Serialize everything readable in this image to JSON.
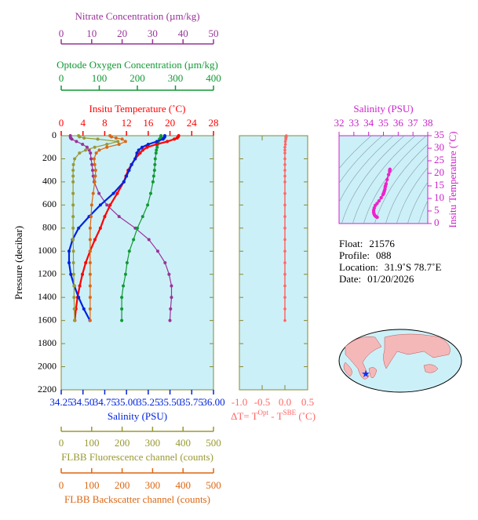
{
  "chart_data": [
    {
      "type": "profile",
      "ylabel": "Pressure (decibar)",
      "y": [
        0,
        10,
        20,
        30,
        50,
        75,
        100,
        125,
        150,
        200,
        250,
        300,
        350,
        400,
        500,
        600,
        700,
        800,
        900,
        1000,
        1100,
        1200,
        1300,
        1400,
        1500,
        1600
      ],
      "ylim": [
        0,
        2200
      ],
      "yticks": [
        0,
        200,
        400,
        600,
        800,
        1000,
        1200,
        1400,
        1600,
        1800,
        2000,
        2200
      ],
      "series": [
        {
          "name": "Nitrate Concentration (µm/kg)",
          "color": "#993399",
          "xlim": [
            0,
            50
          ],
          "xticks": [
            0,
            10,
            20,
            30,
            40,
            50
          ],
          "values": [
            3.0,
            3.0,
            3.1,
            3.5,
            5,
            7,
            8.5,
            9.2,
            9.6,
            9.8,
            10.1,
            10.3,
            10.5,
            10.8,
            12.4,
            15,
            19,
            24.3,
            28.8,
            31.7,
            34.1,
            35.4,
            36.2,
            36.2,
            35.9,
            35.7
          ]
        },
        {
          "name": "Optode Oxygen Concentration (µm/kg)",
          "color": "#119933",
          "xlim": [
            0,
            400
          ],
          "xticks": [
            0,
            100,
            200,
            300,
            400
          ],
          "values": [
            262,
            262,
            261,
            258,
            255,
            253,
            252,
            250,
            249,
            247,
            246,
            245,
            243,
            241,
            235,
            227,
            214,
            200,
            190,
            179,
            173,
            169,
            163,
            159,
            159,
            159
          ]
        },
        {
          "name": "Insitu Temperature (˚C)",
          "color": "#ff0000",
          "xlim": [
            0,
            28
          ],
          "xticks": [
            0,
            4,
            8,
            12,
            16,
            20,
            24,
            28
          ],
          "values": [
            21.6,
            21.5,
            21.3,
            20.8,
            19.5,
            17.5,
            15.8,
            15.0,
            14.5,
            13.6,
            12.9,
            12.3,
            11.9,
            11.5,
            10.3,
            9.0,
            8.0,
            7.2,
            6.2,
            5.3,
            4.5,
            3.9,
            3.4,
            3.0,
            2.7,
            2.5
          ]
        },
        {
          "name": "Salinity (PSU)",
          "color": "#0022dd",
          "xlim": [
            34.25,
            36.0
          ],
          "xticks": [
            {
              "value": 34.25,
              "label": "34.25"
            },
            {
              "value": 34.5,
              "label": "34.50"
            },
            {
              "value": 34.75,
              "label": "34.75"
            },
            {
              "value": 35,
              "label": "35.00"
            },
            {
              "value": 35.25,
              "label": "35.25"
            },
            {
              "value": 35.5,
              "label": "35.50"
            },
            {
              "value": 35.75,
              "label": "35.75"
            },
            {
              "value": 36,
              "label": "36.00"
            }
          ],
          "values": [
            35.44,
            35.44,
            35.43,
            35.42,
            35.35,
            35.25,
            35.18,
            35.14,
            35.12,
            35.1,
            35.06,
            35.03,
            35.0,
            34.97,
            34.85,
            34.7,
            34.57,
            34.45,
            34.38,
            34.34,
            34.34,
            34.36,
            34.4,
            34.45,
            34.51,
            34.58
          ]
        },
        {
          "name": "FLBB Fluorescence channel (counts)",
          "color": "#999933",
          "xlim": [
            0,
            500
          ],
          "xticks": [
            0,
            100,
            200,
            300,
            400,
            500
          ],
          "values": [
            57,
            60,
            75,
            120,
            186,
            150,
            110,
            80,
            60,
            44,
            40,
            39,
            39,
            39,
            39,
            39,
            39,
            39,
            39,
            40,
            40,
            41,
            42,
            42,
            43,
            44
          ]
        },
        {
          "name": "FLBB Backscatter channel (counts)",
          "color": "#dd6611",
          "xlim": [
            0,
            500
          ],
          "xticks": [
            0,
            100,
            200,
            300,
            400,
            500
          ],
          "values": [
            160,
            165,
            180,
            200,
            211,
            190,
            150,
            125,
            115,
            108,
            110,
            113,
            112,
            110,
            105,
            100,
            98,
            95,
            95,
            95,
            95,
            95,
            95,
            95,
            95,
            95
          ]
        }
      ]
    },
    {
      "type": "delta-profile",
      "color": "#ff6666",
      "xlabel": [
        "ΔT= T",
        "Opt",
        " - T",
        "SBE",
        " (˚C)"
      ],
      "xlim": [
        -1.0,
        0.5
      ],
      "xticks": [
        {
          "value": -1,
          "label": "-1.0"
        },
        {
          "value": -0.5,
          "label": "-0.5"
        },
        {
          "value": 0,
          "label": "0.0"
        },
        0.5
      ],
      "y": [
        0,
        10,
        20,
        30,
        50,
        75,
        100,
        125,
        150,
        200,
        250,
        300,
        350,
        400,
        500,
        600,
        700,
        800,
        900,
        1000,
        1100,
        1200,
        1300,
        1400,
        1500,
        1600
      ],
      "ylim": [
        0,
        2200
      ],
      "values": [
        0.03,
        0.03,
        0.02,
        0.02,
        0.01,
        0.01,
        0,
        0,
        0,
        0,
        0,
        0,
        0,
        0,
        0,
        0,
        0,
        0,
        0,
        0,
        0,
        0,
        0,
        0,
        0,
        0
      ]
    },
    {
      "type": "ts-scatter",
      "color": "#ee22cc",
      "xlabel": "Salinity (PSU)",
      "ylabel": "Insitu Temperature (˚C)",
      "xlim": [
        32,
        38
      ],
      "xticks": [
        32,
        33,
        34,
        35,
        36,
        37,
        38
      ],
      "ylim": [
        0,
        35
      ],
      "yticks": [
        0,
        5,
        10,
        15,
        20,
        25,
        30,
        35
      ]
    }
  ],
  "float_info": [
    {
      "label": "Float:",
      "value": "21576"
    },
    {
      "label": "Profile:",
      "value": "088"
    },
    {
      "label": "Location:",
      "value": "31.9˚S  78.7˚E"
    },
    {
      "label": "Date:",
      "value": "01/20/2026"
    }
  ]
}
